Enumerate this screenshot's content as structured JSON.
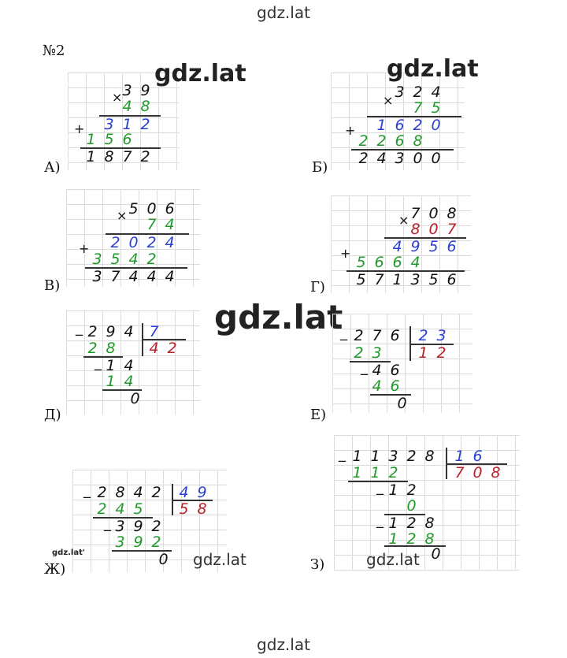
{
  "watermarks": {
    "top": "gdz.lat",
    "bottom": "gdz.lat",
    "big1": "gdz.lat",
    "big2": "gdz.lat",
    "center": "gdz.lat",
    "small1": "gdz.lat",
    "small2": "gdz.lat",
    "tiny": "gdz.lat'"
  },
  "task_number": "№2",
  "labels": {
    "a": "А)",
    "b": "Б)",
    "v": "В)",
    "g": "Г)",
    "d": "Д)",
    "e": "Е)",
    "zh": "Ж)",
    "z": "З)"
  },
  "problems": {
    "a": {
      "multiplicand": "39",
      "multiplier": "48",
      "partial1": "312",
      "partial2": "156",
      "result": "1872"
    },
    "b": {
      "multiplicand": "324",
      "multiplier": "75",
      "partial1": "1620",
      "partial2": "2268",
      "result": "24300"
    },
    "v": {
      "multiplicand": "506",
      "multiplier": "74",
      "partial1": "2024",
      "partial2": "3542",
      "result": "37444"
    },
    "g": {
      "multiplicand": "708",
      "multiplier": "807",
      "partial1": "4956",
      "partial2": "5664",
      "result": "571356"
    },
    "d": {
      "dividend": "294",
      "divisor": "7",
      "quotient": "42",
      "sub1": "28",
      "rem1": "14",
      "sub2": "14",
      "rem2": "0"
    },
    "e": {
      "dividend": "276",
      "divisor": "23",
      "quotient": "12",
      "sub1": "23",
      "rem1": "46",
      "sub2": "46",
      "rem2": "0"
    },
    "zh": {
      "dividend": "2842",
      "divisor": "49",
      "quotient": "58",
      "sub1": "245",
      "rem1": "392",
      "sub2": "392",
      "rem2": "0"
    },
    "z": {
      "dividend": "11328",
      "divisor": "16",
      "quotient": "708",
      "sub1": "112",
      "rem1": "12",
      "sub2": "0",
      "rem2": "128",
      "sub3": "128",
      "rem3": "0"
    }
  },
  "signs": {
    "times": "×",
    "plus": "+",
    "minus": "_"
  },
  "colors": {
    "black": "#111111",
    "blue": "#2a3fd1",
    "green": "#1f9a2a",
    "red": "#b8202a"
  }
}
